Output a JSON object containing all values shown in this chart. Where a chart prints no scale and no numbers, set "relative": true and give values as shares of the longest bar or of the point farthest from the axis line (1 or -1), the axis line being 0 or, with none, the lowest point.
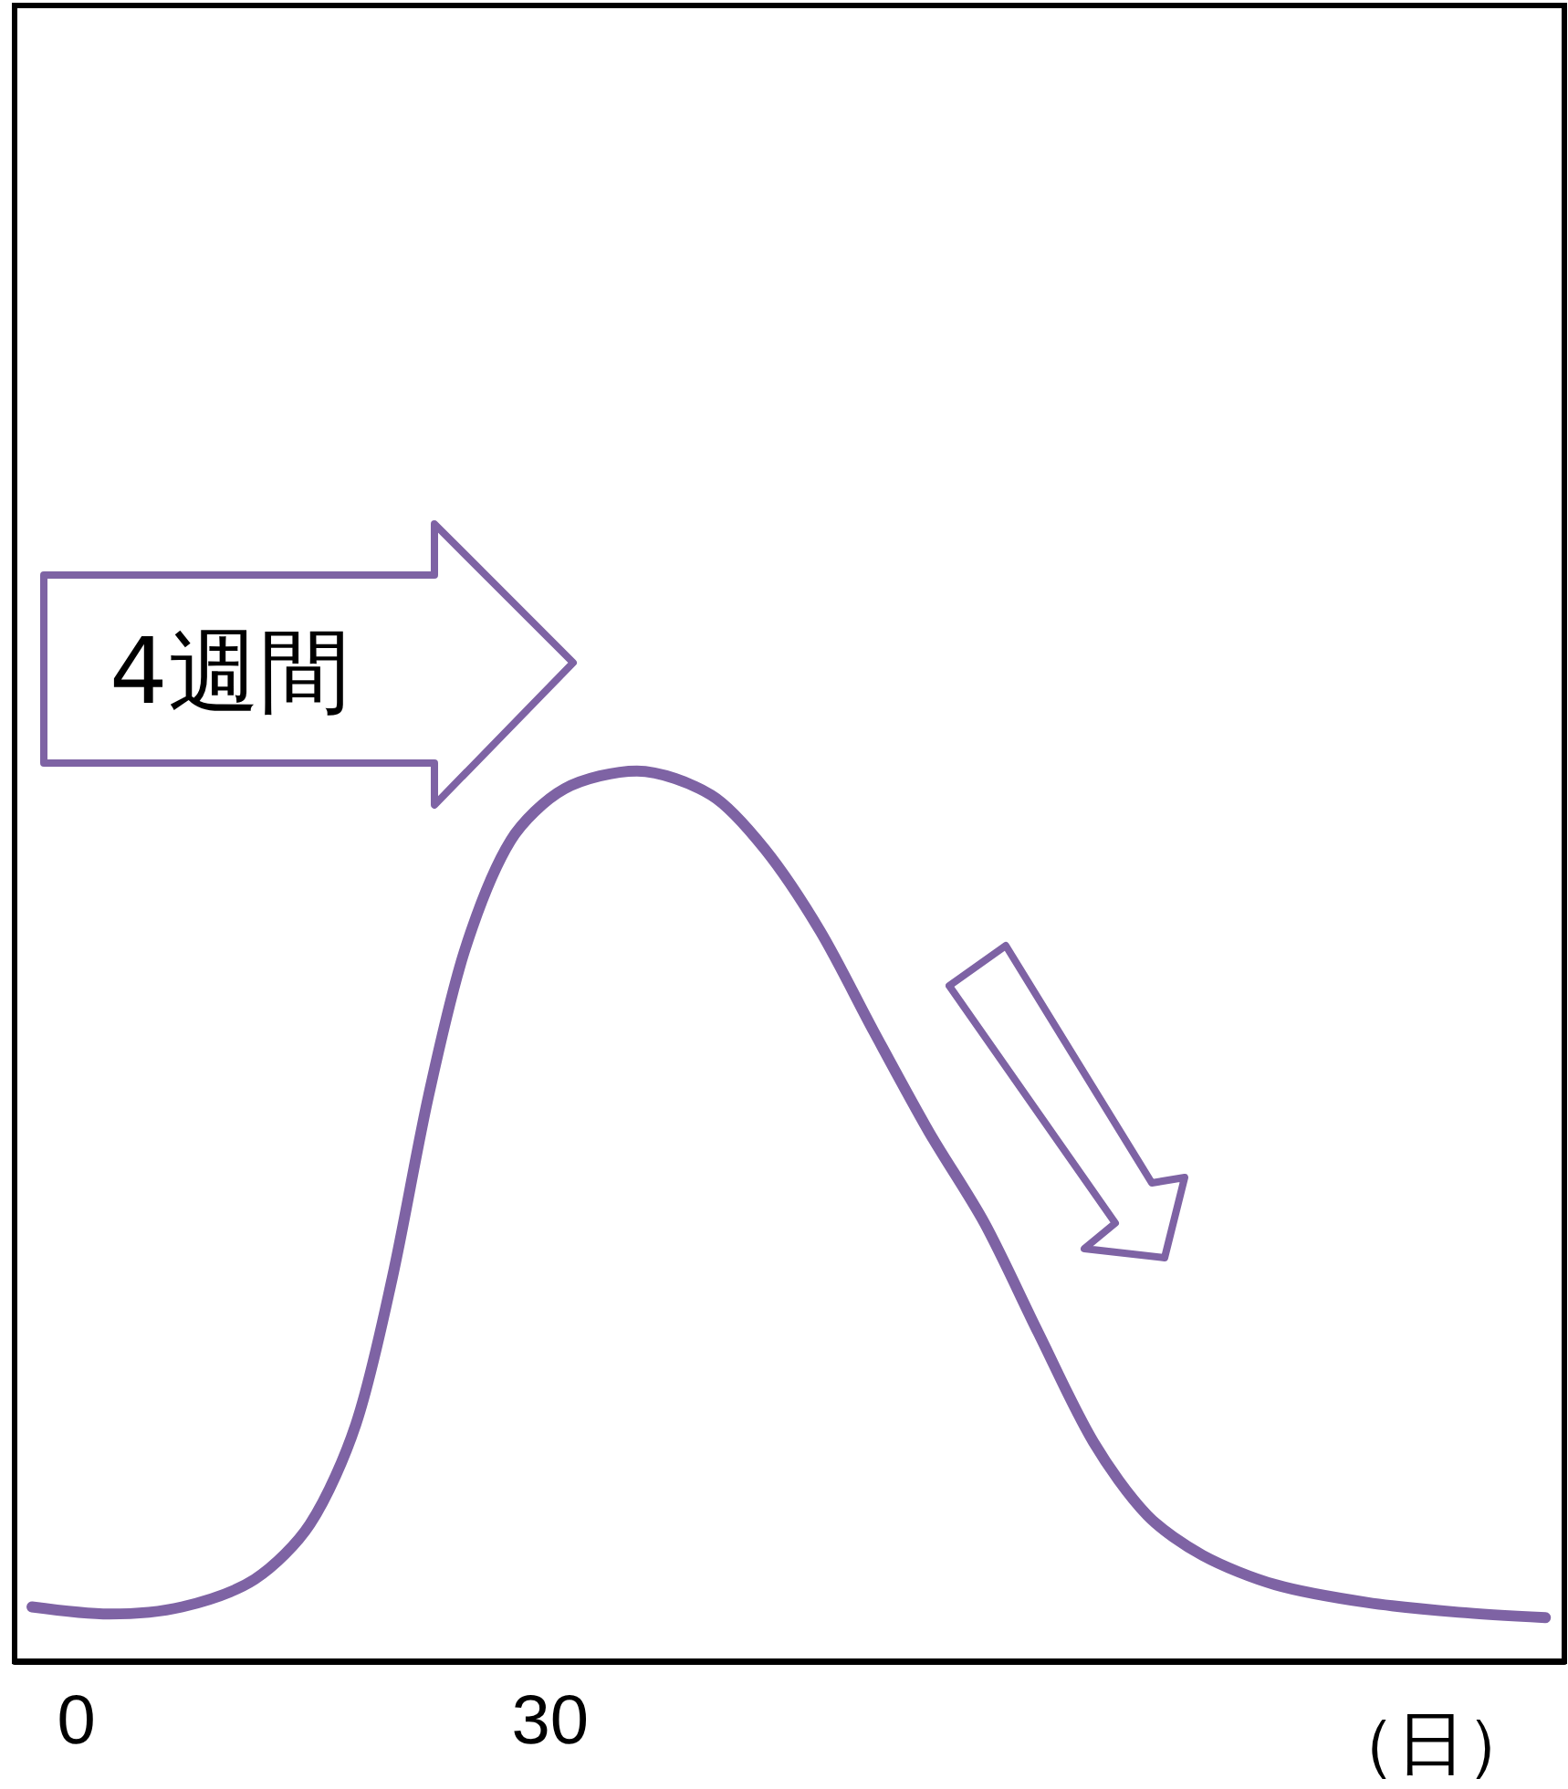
{
  "chart_data": {
    "type": "line",
    "relative": true,
    "xlabel": "（日）",
    "annotations": [
      "4週間"
    ],
    "xlim": [
      -3.9,
      94.2
    ],
    "xticks": [
      0,
      30
    ],
    "series": [
      {
        "color": "#7e63a4",
        "x": [
          -2.8,
          2.1,
          6.7,
          11.3,
          14.8,
          17.7,
          20.0,
          22.3,
          24.6,
          27.5,
          30.9,
          35.5,
          40.2,
          43.6,
          47.1,
          50.5,
          54.0,
          57.5,
          60.9,
          64.4,
          67.8,
          71.3,
          75.9,
          81.7,
          87.5,
          93.0
        ],
        "values": [
          0.061,
          0.053,
          0.061,
          0.092,
          0.154,
          0.266,
          0.43,
          0.635,
          0.799,
          0.922,
          0.98,
          1,
          0.973,
          0.912,
          0.82,
          0.707,
          0.594,
          0.492,
          0.369,
          0.246,
          0.164,
          0.119,
          0.086,
          0.066,
          0.055,
          0.049
        ]
      }
    ]
  }
}
